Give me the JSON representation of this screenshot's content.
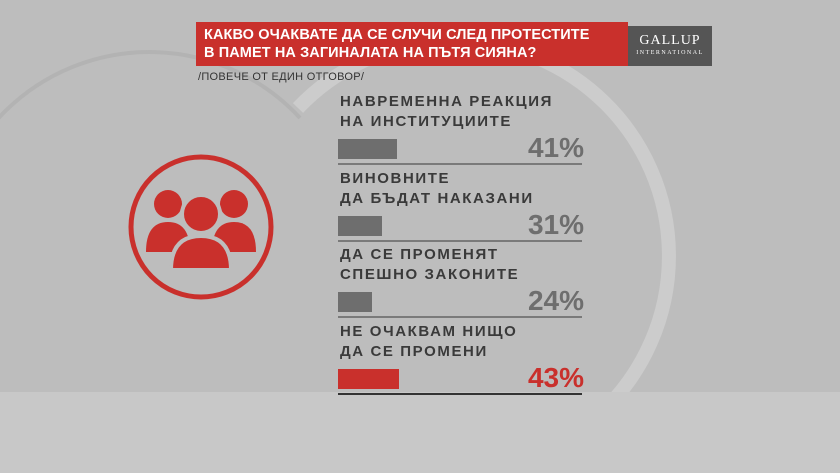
{
  "title": {
    "line1": "КАКВО ОЧАКВАТЕ ДА СЕ СЛУЧИ СЛЕД ПРОТЕСТИТЕ",
    "line2": "В ПАМЕТ НА ЗАГИНАЛАТА НА ПЪТЯ СИЯНА?"
  },
  "subtitle": "/ПОВЕЧЕ ОТ ЕДИН ОТГОВОР/",
  "logo": {
    "main": "GALLUP",
    "sub": "INTERNATIONAL"
  },
  "colors": {
    "accent": "#c9302c",
    "bar_default": "#6e6e6e",
    "bar_highlight": "#c9302c",
    "text": "#3a3a3a"
  },
  "icons": [
    "people-group-icon"
  ],
  "chart_data": {
    "type": "bar",
    "orientation": "horizontal",
    "title": "КАКВО ОЧАКВАТЕ ДА СЕ СЛУЧИ СЛЕД ПРОТЕСТИТЕ В ПАМЕТ НА ЗАГИНАЛАТА НА ПЪТЯ СИЯНА?",
    "subtitle": "/ПОВЕЧЕ ОТ ЕДИН ОТГОВОР/",
    "categories": [
      "НАВРЕМЕННА РЕАКЦИЯ НА ИНСТИТУЦИИТЕ",
      "ВИНОВНИТЕ ДА БЪДАТ НАКАЗАНИ",
      "ДА СЕ ПРОМЕНЯТ СПЕШНО ЗАКОНИТЕ",
      "НЕ ОЧАКВАМ НИЩО ДА СЕ ПРОМЕНИ"
    ],
    "category_lines": [
      [
        "НАВРЕМЕННА РЕАКЦИЯ",
        "НА ИНСТИТУЦИИТЕ"
      ],
      [
        "ВИНОВНИТЕ",
        "ДА БЪДАТ НАКАЗАНИ"
      ],
      [
        "ДА СЕ ПРОМЕНЯТ",
        "СПЕШНО ЗАКОНИТЕ"
      ],
      [
        "НЕ ОЧАКВАМ НИЩО",
        "ДА СЕ ПРОМЕНИ"
      ]
    ],
    "values": [
      41,
      31,
      24,
      43
    ],
    "labels": [
      "41%",
      "31%",
      "24%",
      "43%"
    ],
    "highlight_index": 3,
    "unit": "%",
    "xlim": [
      0,
      100
    ],
    "grid": false,
    "legend": "none"
  }
}
